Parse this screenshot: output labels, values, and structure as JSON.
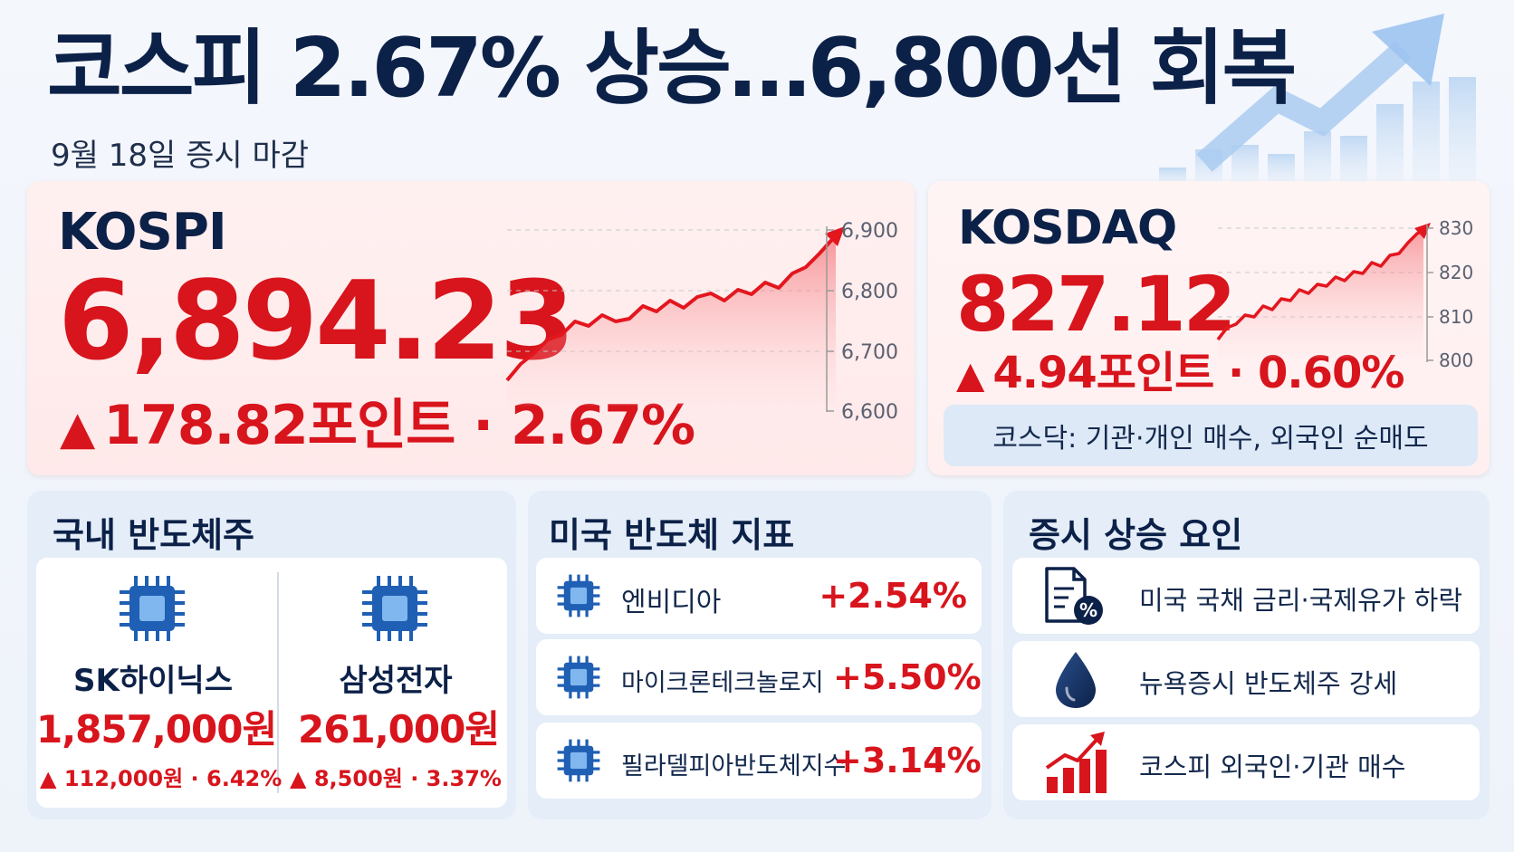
{
  "header": {
    "title": "코스피 2.67% 상승…6,800선 회복",
    "subtitle": "9월 18일 증시 마감"
  },
  "kospi": {
    "name": "KOSPI",
    "value": "6,894.23",
    "change_triangle": "▲",
    "change_text": "178.82포인트 · 2.67%",
    "axis_ticks": [
      "6,900",
      "6,800",
      "6,700",
      "6,600"
    ]
  },
  "kosdaq": {
    "name": "KOSDAQ",
    "value": "827.12",
    "change_triangle": "▲",
    "change_text": "4.94포인트 · 0.60%",
    "note": "코스닥: 기관·개인 매수, 외국인 순매도",
    "axis_ticks": [
      "830",
      "820",
      "810",
      "800"
    ]
  },
  "domestic_semis": {
    "title": "국내 반도체주",
    "stocks": [
      {
        "name": "SK하이닉스",
        "price": "1,857,000원",
        "change": "▲ 112,000원 · 6.42%",
        "icon": "chip-icon"
      },
      {
        "name": "삼성전자",
        "price": "261,000원",
        "change": "▲ 8,500원 · 3.37%",
        "icon": "chip-icon"
      }
    ]
  },
  "us_semis": {
    "title": "미국 반도체 지표",
    "items": [
      {
        "label": "엔비디아",
        "value": "+2.54%",
        "icon": "chip-icon"
      },
      {
        "label": "마이크론테크놀로지",
        "value": "+5.50%",
        "icon": "chip-icon"
      },
      {
        "label": "필라델피아반도체지수",
        "value": "+3.14%",
        "icon": "chip-icon"
      }
    ]
  },
  "factors": {
    "title": "증시 상승 요인",
    "items": [
      {
        "label": "미국 국채 금리·국제유가 하락",
        "icon": "document-percent-icon"
      },
      {
        "label": "뉴욕증시 반도체주 강세",
        "icon": "oil-drop-icon"
      },
      {
        "label": "코스피 외국인·기관 매수",
        "icon": "rising-bar-chart-icon"
      }
    ]
  },
  "colors": {
    "navy": "#0c2148",
    "red": "#d8141c",
    "chip_blue": "#1f5fb4",
    "panel_bg": "#e4edf8"
  }
}
